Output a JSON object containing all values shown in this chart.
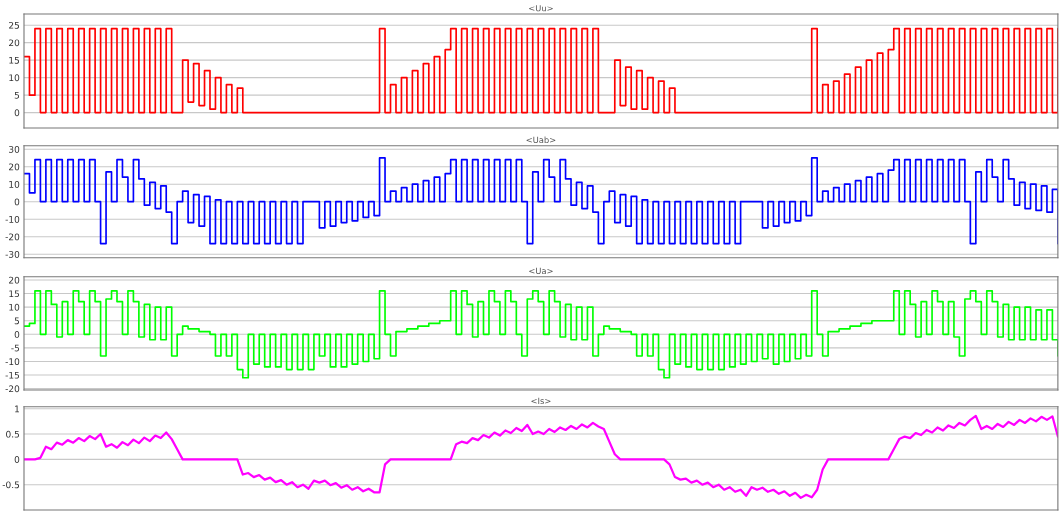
{
  "chart_data": [
    {
      "type": "step",
      "title": "<Uu>",
      "ylim": [
        -4.4,
        28.2
      ],
      "yticks": [
        0,
        5,
        10,
        15,
        20,
        25
      ],
      "grid": "y",
      "tick_labels": "y",
      "categories": [
        null,
        null,
        null,
        null,
        null,
        null,
        null,
        null,
        null,
        null,
        null,
        null,
        null,
        null,
        null,
        null,
        null,
        null,
        null,
        null,
        null,
        null,
        null,
        null,
        null,
        null,
        null,
        null,
        null,
        null,
        null,
        null,
        null,
        null,
        null,
        null,
        null,
        null,
        null,
        null,
        null,
        null,
        null,
        null,
        null,
        null,
        null,
        null,
        null,
        null,
        null,
        null,
        null,
        null,
        null,
        null,
        null,
        null,
        null,
        null,
        null,
        null,
        null,
        null,
        null,
        null,
        null,
        null,
        null,
        null,
        null,
        null,
        null,
        null,
        null,
        null,
        null,
        null,
        null,
        null,
        null,
        null,
        null,
        null,
        null,
        null,
        null,
        null,
        null,
        null,
        null,
        null,
        null,
        null,
        null,
        null,
        null,
        null,
        null,
        null,
        null,
        null,
        null,
        null,
        null,
        null,
        null,
        null,
        null,
        null,
        null,
        null,
        null,
        null,
        null,
        null,
        null,
        null,
        null,
        null,
        null,
        null,
        null,
        null,
        null,
        null,
        null,
        null,
        null,
        null,
        null,
        null,
        null,
        null,
        null,
        null,
        null,
        null,
        null,
        null,
        null,
        null,
        null,
        null,
        null,
        null,
        null,
        null,
        null,
        null,
        null,
        null,
        null,
        null,
        null,
        null,
        null,
        null,
        null,
        null,
        null,
        null,
        null,
        null,
        null,
        null,
        null,
        null,
        null,
        null,
        null,
        null,
        null,
        null,
        null,
        null,
        null,
        null,
        null,
        null,
        null,
        null,
        null,
        null,
        null,
        null,
        null,
        null,
        null,
        null
      ],
      "series": [
        {
          "color": "#ff0000",
          "values": [
            16,
            5,
            24,
            0,
            24,
            0,
            24,
            0,
            24,
            0,
            24,
            0,
            24,
            0,
            24,
            0,
            24,
            0,
            24,
            0,
            24,
            0,
            24,
            0,
            24,
            0,
            24,
            0,
            0,
            15,
            3,
            14,
            2,
            12,
            1,
            10,
            0,
            8,
            0,
            7,
            0,
            0,
            0,
            0,
            0,
            0,
            0,
            0,
            0,
            0,
            0,
            0,
            0,
            0,
            0,
            0,
            0,
            0,
            0,
            0,
            0,
            0,
            0,
            0,
            0,
            24,
            0,
            8,
            0,
            10,
            0,
            12,
            0,
            14,
            0,
            16,
            0,
            18,
            24,
            0,
            24,
            0,
            24,
            0,
            24,
            0,
            24,
            0,
            24,
            0,
            24,
            0,
            24,
            0,
            24,
            0,
            24,
            0,
            24,
            0,
            24,
            0,
            24,
            0,
            24,
            0,
            0,
            0,
            15,
            2,
            13,
            1,
            12,
            1,
            10,
            0,
            9,
            0,
            7,
            0,
            0,
            0,
            0,
            0,
            0,
            0,
            0,
            0,
            0,
            0,
            0,
            0,
            0,
            0,
            0,
            0,
            0,
            0,
            0,
            0,
            0,
            0,
            0,
            0,
            24,
            0,
            8,
            0,
            9,
            0,
            11,
            0,
            13,
            0,
            15,
            0,
            17,
            0,
            18,
            24,
            0,
            24,
            0,
            24,
            0,
            24,
            0,
            24,
            0,
            24,
            0,
            24,
            0,
            24,
            0,
            24,
            0,
            24,
            0,
            24,
            0,
            24,
            0,
            24,
            0,
            24,
            0,
            24,
            0,
            24
          ]
        }
      ]
    },
    {
      "type": "step",
      "title": "<Uab>",
      "ylim": [
        -32,
        32
      ],
      "yticks": [
        -30,
        -20,
        -10,
        0,
        10,
        20,
        30
      ],
      "grid": "y",
      "tick_labels": "y",
      "categories": [
        null,
        null,
        null,
        null,
        null,
        null,
        null,
        null,
        null,
        null,
        null,
        null,
        null,
        null,
        null,
        null,
        null,
        null,
        null,
        null,
        null,
        null,
        null,
        null,
        null,
        null,
        null,
        null,
        null,
        null,
        null,
        null,
        null,
        null,
        null,
        null,
        null,
        null,
        null,
        null,
        null,
        null,
        null,
        null,
        null,
        null,
        null,
        null,
        null,
        null,
        null,
        null,
        null,
        null,
        null,
        null,
        null,
        null,
        null,
        null,
        null,
        null,
        null,
        null,
        null,
        null,
        null,
        null,
        null,
        null,
        null,
        null,
        null,
        null,
        null,
        null,
        null,
        null,
        null,
        null,
        null,
        null,
        null,
        null,
        null,
        null,
        null,
        null,
        null,
        null,
        null,
        null,
        null,
        null,
        null,
        null,
        null,
        null,
        null,
        null,
        null,
        null,
        null,
        null,
        null,
        null,
        null,
        null,
        null,
        null,
        null,
        null,
        null,
        null,
        null,
        null,
        null,
        null,
        null,
        null,
        null,
        null,
        null,
        null,
        null,
        null,
        null,
        null,
        null,
        null,
        null,
        null,
        null,
        null,
        null,
        null,
        null,
        null,
        null,
        null,
        null,
        null,
        null,
        null,
        null,
        null,
        null,
        null,
        null,
        null,
        null,
        null,
        null,
        null,
        null,
        null,
        null,
        null,
        null,
        null,
        null,
        null,
        null,
        null,
        null,
        null,
        null,
        null,
        null,
        null,
        null,
        null,
        null,
        null,
        null,
        null,
        null,
        null,
        null,
        null,
        null,
        null,
        null,
        null,
        null,
        null,
        null,
        null,
        null,
        null
      ],
      "series": [
        {
          "color": "#0000ff",
          "values": [
            16,
            5,
            24,
            0,
            24,
            0,
            24,
            0,
            24,
            0,
            24,
            0,
            24,
            0,
            -24,
            17,
            0,
            24,
            14,
            0,
            24,
            13,
            -2,
            11,
            -4,
            9,
            -6,
            -24,
            0,
            6,
            -12,
            4,
            -14,
            3,
            -24,
            1,
            -24,
            0,
            -24,
            0,
            -24,
            0,
            -24,
            0,
            -24,
            0,
            -24,
            0,
            -24,
            0,
            -24,
            0,
            0,
            0,
            -15,
            0,
            -14,
            0,
            -12,
            0,
            -11,
            0,
            -9,
            0,
            -8,
            25,
            0,
            6,
            0,
            8,
            0,
            10,
            0,
            12,
            0,
            14,
            0,
            16,
            24,
            0,
            24,
            0,
            24,
            0,
            24,
            0,
            24,
            0,
            24,
            0,
            24,
            0,
            -24,
            17,
            0,
            24,
            14,
            0,
            24,
            13,
            -2,
            11,
            -4,
            9,
            -6,
            -24,
            0,
            6,
            -12,
            4,
            -14,
            3,
            -24,
            1,
            -24,
            0,
            -24,
            0,
            -24,
            0,
            -24,
            0,
            -24,
            0,
            -24,
            0,
            -24,
            0,
            -24,
            0,
            -24,
            0,
            0,
            0,
            0,
            -15,
            0,
            -14,
            0,
            -12,
            0,
            -11,
            0,
            -8,
            25,
            0,
            6,
            0,
            8,
            0,
            10,
            0,
            12,
            0,
            14,
            0,
            16,
            0,
            18,
            24,
            0,
            24,
            0,
            24,
            0,
            24,
            0,
            24,
            0,
            24,
            0,
            24,
            0,
            -24,
            17,
            0,
            24,
            14,
            0,
            24,
            13,
            -2,
            11,
            -4,
            10,
            -5,
            9,
            -6,
            7,
            -24
          ]
        }
      ]
    },
    {
      "type": "step",
      "title": "<Ua>",
      "ylim": [
        -20.5,
        21.2
      ],
      "yticks": [
        -20,
        -15,
        -10,
        -5,
        0,
        5,
        10,
        15,
        20
      ],
      "grid": "y",
      "tick_labels": "y",
      "categories": [
        null,
        null,
        null,
        null,
        null,
        null,
        null,
        null,
        null,
        null,
        null,
        null,
        null,
        null,
        null,
        null,
        null,
        null,
        null,
        null,
        null,
        null,
        null,
        null,
        null,
        null,
        null,
        null,
        null,
        null,
        null,
        null,
        null,
        null,
        null,
        null,
        null,
        null,
        null,
        null,
        null,
        null,
        null,
        null,
        null,
        null,
        null,
        null,
        null,
        null,
        null,
        null,
        null,
        null,
        null,
        null,
        null,
        null,
        null,
        null,
        null,
        null,
        null,
        null,
        null,
        null,
        null,
        null,
        null,
        null,
        null,
        null,
        null,
        null,
        null,
        null,
        null,
        null,
        null,
        null,
        null,
        null,
        null,
        null,
        null,
        null,
        null,
        null,
        null,
        null,
        null,
        null,
        null,
        null,
        null,
        null,
        null,
        null,
        null,
        null,
        null,
        null,
        null,
        null,
        null,
        null,
        null,
        null,
        null,
        null,
        null,
        null,
        null,
        null,
        null,
        null,
        null,
        null,
        null,
        null,
        null,
        null,
        null,
        null,
        null,
        null,
        null,
        null,
        null,
        null,
        null,
        null,
        null,
        null,
        null,
        null,
        null,
        null,
        null,
        null,
        null,
        null,
        null,
        null,
        null,
        null,
        null,
        null,
        null,
        null,
        null,
        null,
        null,
        null,
        null,
        null,
        null,
        null,
        null,
        null,
        null,
        null,
        null,
        null,
        null,
        null,
        null,
        null,
        null,
        null,
        null,
        null,
        null,
        null,
        null,
        null,
        null,
        null,
        null,
        null,
        null,
        null,
        null,
        null,
        null,
        null,
        null,
        null,
        null,
        null
      ],
      "series": [
        {
          "color": "#00ff00",
          "values": [
            3,
            4,
            16,
            0,
            16,
            11,
            -1,
            12,
            0,
            16,
            12,
            0,
            16,
            12,
            -8,
            13,
            16,
            12,
            0,
            16,
            12,
            -1,
            11,
            -2,
            10,
            -2,
            10,
            -8,
            0,
            3,
            2,
            2,
            1,
            1,
            0,
            -8,
            0,
            -8,
            0,
            -13,
            -16,
            0,
            -11,
            0,
            -12,
            0,
            -12,
            0,
            -13,
            0,
            -13,
            0,
            -13,
            0,
            -8,
            0,
            -12,
            0,
            -12,
            0,
            -11,
            0,
            -10,
            0,
            -9,
            16,
            0,
            -8,
            1,
            1,
            2,
            2,
            3,
            3,
            4,
            4,
            5,
            5,
            16,
            0,
            16,
            11,
            -1,
            12,
            0,
            16,
            12,
            0,
            16,
            12,
            0,
            -8,
            13,
            16,
            12,
            0,
            16,
            12,
            -1,
            11,
            -2,
            10,
            -2,
            10,
            -8,
            0,
            3,
            2,
            2,
            1,
            1,
            0,
            -8,
            0,
            -8,
            0,
            -13,
            -16,
            0,
            -11,
            0,
            -12,
            0,
            -13,
            0,
            -13,
            0,
            -13,
            0,
            -12,
            0,
            -11,
            0,
            -10,
            0,
            -9,
            0,
            -11,
            0,
            -10,
            0,
            -9,
            0,
            -8,
            16,
            0,
            -8,
            1,
            1,
            2,
            2,
            3,
            3,
            4,
            4,
            5,
            5,
            5,
            5,
            16,
            0,
            16,
            11,
            -1,
            12,
            0,
            16,
            12,
            0,
            12,
            -1,
            -8,
            13,
            16,
            12,
            0,
            16,
            12,
            -1,
            11,
            -2,
            10,
            -2,
            10,
            -2,
            9,
            -2,
            9,
            -2,
            -8
          ]
        }
      ]
    },
    {
      "type": "line",
      "title": "<Is>",
      "ylim": [
        -1,
        1.04
      ],
      "yticks": [
        -0.5,
        0,
        0.5,
        1
      ],
      "grid": "y",
      "tick_labels": "y",
      "categories": [
        null,
        null,
        null,
        null,
        null,
        null,
        null,
        null,
        null,
        null,
        null,
        null,
        null,
        null,
        null,
        null,
        null,
        null,
        null,
        null,
        null,
        null,
        null,
        null,
        null,
        null,
        null,
        null,
        null,
        null,
        null,
        null,
        null,
        null,
        null,
        null,
        null,
        null,
        null,
        null,
        null,
        null,
        null,
        null,
        null,
        null,
        null,
        null,
        null,
        null,
        null,
        null,
        null,
        null,
        null,
        null,
        null,
        null,
        null,
        null,
        null,
        null,
        null,
        null,
        null,
        null,
        null,
        null,
        null,
        null,
        null,
        null,
        null,
        null,
        null,
        null,
        null,
        null,
        null,
        null,
        null,
        null,
        null,
        null,
        null,
        null,
        null,
        null,
        null,
        null,
        null,
        null,
        null,
        null,
        null,
        null,
        null,
        null,
        null,
        null,
        null,
        null,
        null,
        null,
        null,
        null,
        null,
        null,
        null,
        null,
        null,
        null,
        null,
        null,
        null,
        null,
        null,
        null,
        null,
        null,
        null,
        null,
        null,
        null,
        null,
        null,
        null,
        null,
        null,
        null,
        null,
        null,
        null,
        null,
        null,
        null,
        null,
        null,
        null,
        null,
        null,
        null,
        null,
        null,
        null,
        null,
        null,
        null,
        null,
        null,
        null,
        null,
        null,
        null,
        null,
        null,
        null,
        null,
        null,
        null,
        null,
        null,
        null,
        null,
        null,
        null,
        null,
        null,
        null,
        null,
        null,
        null,
        null,
        null,
        null,
        null,
        null,
        null,
        null,
        null,
        null,
        null,
        null,
        null,
        null,
        null,
        null,
        null,
        null,
        null
      ],
      "series": [
        {
          "color": "#ff00ff",
          "values": [
            0,
            0,
            0,
            0.03,
            0.25,
            0.2,
            0.33,
            0.29,
            0.38,
            0.33,
            0.42,
            0.36,
            0.46,
            0.4,
            0.5,
            0.25,
            0.3,
            0.23,
            0.34,
            0.28,
            0.39,
            0.32,
            0.43,
            0.36,
            0.47,
            0.42,
            0.53,
            0.4,
            0.2,
            0,
            0,
            0,
            0,
            0,
            0,
            0,
            0,
            0,
            0,
            0,
            -0.3,
            -0.27,
            -0.35,
            -0.31,
            -0.4,
            -0.36,
            -0.45,
            -0.41,
            -0.5,
            -0.45,
            -0.55,
            -0.5,
            -0.58,
            -0.42,
            -0.46,
            -0.42,
            -0.51,
            -0.47,
            -0.56,
            -0.51,
            -0.6,
            -0.55,
            -0.63,
            -0.58,
            -0.65,
            -0.65,
            -0.1,
            0,
            0,
            0,
            0,
            0,
            0,
            0,
            0,
            0,
            0,
            0,
            0,
            0.3,
            0.35,
            0.32,
            0.42,
            0.38,
            0.48,
            0.43,
            0.53,
            0.47,
            0.57,
            0.52,
            0.62,
            0.56,
            0.68,
            0.5,
            0.55,
            0.5,
            0.6,
            0.54,
            0.63,
            0.58,
            0.66,
            0.6,
            0.69,
            0.63,
            0.72,
            0.65,
            0.6,
            0.35,
            0.1,
            0,
            0,
            0,
            0,
            0,
            0,
            0,
            0,
            0,
            -0.1,
            -0.35,
            -0.4,
            -0.38,
            -0.46,
            -0.42,
            -0.5,
            -0.46,
            -0.55,
            -0.5,
            -0.6,
            -0.55,
            -0.64,
            -0.6,
            -0.72,
            -0.55,
            -0.6,
            -0.56,
            -0.64,
            -0.6,
            -0.68,
            -0.63,
            -0.72,
            -0.66,
            -0.76,
            -0.7,
            -0.75,
            -0.6,
            -0.2,
            0,
            0,
            0,
            0,
            0,
            0,
            0,
            0,
            0,
            0,
            0,
            0,
            0.2,
            0.4,
            0.45,
            0.42,
            0.52,
            0.48,
            0.58,
            0.53,
            0.63,
            0.57,
            0.67,
            0.62,
            0.72,
            0.67,
            0.78,
            0.86,
            0.6,
            0.66,
            0.6,
            0.7,
            0.64,
            0.74,
            0.68,
            0.78,
            0.72,
            0.81,
            0.75,
            0.84,
            0.78,
            0.85,
            0.45
          ]
        }
      ]
    }
  ]
}
